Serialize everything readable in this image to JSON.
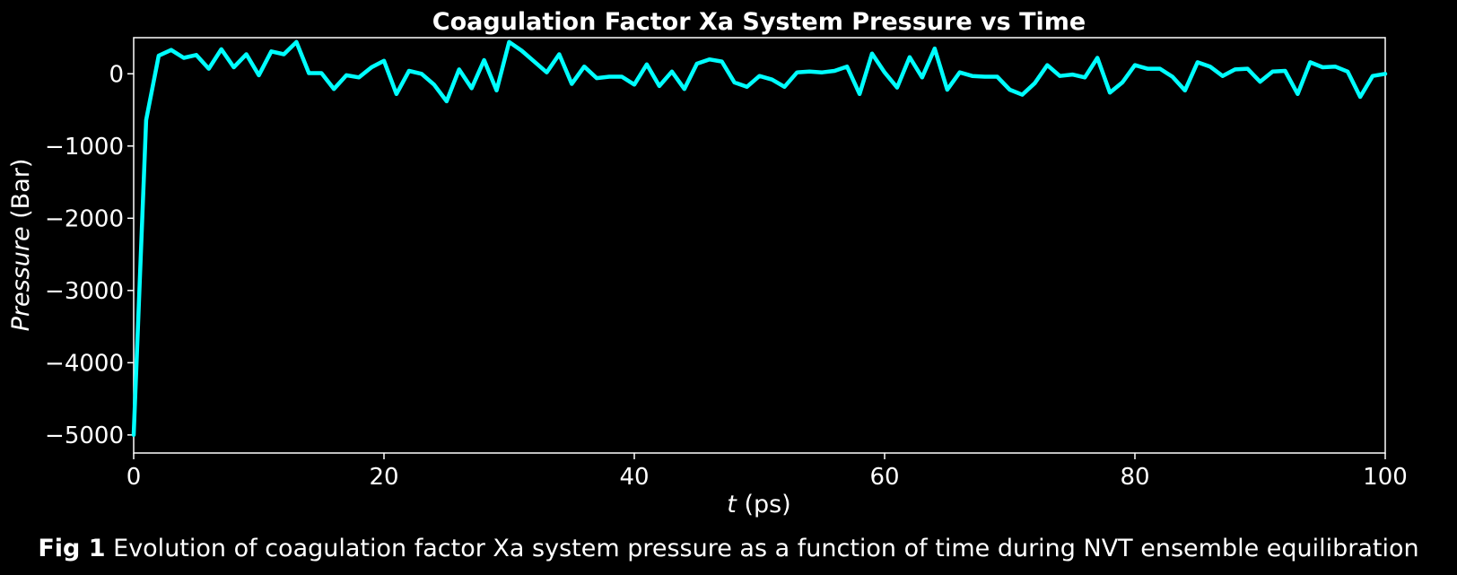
{
  "chart_data": {
    "type": "line",
    "title": "Coagulation Factor Xa System Pressure vs Time",
    "xlabel_var": "t",
    "xlabel_unit": " (ps)",
    "ylabel_var": "Pressure",
    "ylabel_unit": " (Bar)",
    "xlim": [
      0,
      100
    ],
    "ylim": [
      -5250,
      500
    ],
    "xticks": [
      0,
      20,
      40,
      60,
      80,
      100
    ],
    "xtick_labels": [
      "0",
      "20",
      "40",
      "60",
      "80",
      "100"
    ],
    "yticks": [
      0,
      -1000,
      -2000,
      -3000,
      -4000,
      -5000
    ],
    "ytick_labels": [
      "0",
      "−1000",
      "−2000",
      "−3000",
      "−4000",
      "−5000"
    ],
    "grid": false,
    "legend": "none",
    "colors": {
      "background": "#000000",
      "line": "#00ffff",
      "text": "#ffffff",
      "axes": "#ffffff"
    },
    "series": [
      {
        "x": [
          0,
          1,
          2,
          3,
          4,
          5,
          6,
          7,
          8,
          9,
          10,
          11,
          12,
          13,
          14,
          15,
          16,
          17,
          18,
          19,
          20,
          21,
          22,
          23,
          24,
          25,
          26,
          27,
          28,
          29,
          30,
          31,
          32,
          33,
          34,
          35,
          36,
          37,
          38,
          39,
          40,
          41,
          42,
          43,
          44,
          45,
          46,
          47,
          48,
          49,
          50,
          51,
          52,
          53,
          54,
          55,
          56,
          57,
          58,
          59,
          60,
          61,
          62,
          63,
          64,
          65,
          66,
          67,
          68,
          69,
          70,
          71,
          72,
          73,
          74,
          75,
          76,
          77,
          78,
          79,
          80,
          81,
          82,
          83,
          84,
          85,
          86,
          87,
          88,
          89,
          90,
          91,
          92,
          93,
          94,
          95,
          96,
          97,
          98,
          99,
          100
        ],
        "y": [
          -5000,
          -640,
          250,
          330,
          220,
          260,
          70,
          340,
          90,
          270,
          -20,
          310,
          270,
          440,
          10,
          10,
          -210,
          -20,
          -50,
          90,
          180,
          -280,
          40,
          0,
          -150,
          -380,
          60,
          -200,
          190,
          -230,
          440,
          320,
          170,
          20,
          270,
          -140,
          100,
          -60,
          -40,
          -40,
          -150,
          130,
          -170,
          30,
          -210,
          140,
          200,
          170,
          -120,
          -180,
          -30,
          -80,
          -180,
          20,
          30,
          20,
          40,
          100,
          -280,
          280,
          20,
          -190,
          230,
          -50,
          350,
          -220,
          20,
          -30,
          -40,
          -40,
          -220,
          -290,
          -130,
          120,
          -30,
          -10,
          -50,
          220,
          -260,
          -120,
          120,
          70,
          70,
          -40,
          -230,
          160,
          100,
          -30,
          60,
          70,
          -110,
          30,
          40,
          -280,
          160,
          90,
          100,
          30,
          -320,
          -30,
          0
        ]
      }
    ]
  },
  "caption": {
    "label": "Fig 1",
    "text": " Evolution of coagulation factor Xa system pressure as a function of time during NVT ensemble equilibration"
  }
}
